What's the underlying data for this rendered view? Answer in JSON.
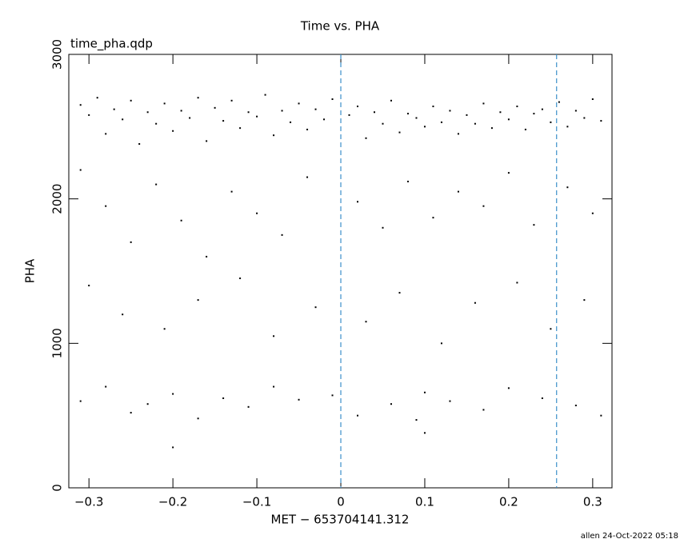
{
  "chart_data": {
    "type": "scatter",
    "title": "Time vs. PHA",
    "subtitle": "time_pha.qdp",
    "x_label": "MET − 653704141.312",
    "y_label": "PHA",
    "footer": "allen 24-Oct-2022 05:18",
    "color": "#000000",
    "vline_color": "#3b8fc9",
    "vlines": [
      0,
      0.257
    ],
    "xlim": [
      -0.324,
      0.323
    ],
    "ylim": [
      0,
      3000
    ],
    "xticks": [
      {
        "value": -0.3,
        "label": "−0.3"
      },
      {
        "value": -0.2,
        "label": "−0.2"
      },
      {
        "value": -0.1,
        "label": "−0.1"
      },
      0,
      0.1,
      0.2,
      0.3
    ],
    "yticks": [
      0,
      1000,
      2000,
      3000
    ],
    "x": [
      -0.31,
      -0.3,
      -0.29,
      -0.28,
      -0.27,
      -0.26,
      -0.25,
      -0.24,
      -0.23,
      -0.22,
      -0.21,
      -0.2,
      -0.19,
      -0.18,
      -0.17,
      -0.16,
      -0.15,
      -0.14,
      -0.13,
      -0.12,
      -0.11,
      -0.1,
      -0.09,
      -0.08,
      -0.07,
      -0.06,
      -0.05,
      -0.04,
      -0.03,
      -0.02,
      -0.01,
      0.01,
      0.02,
      0.03,
      0.04,
      0.05,
      0.06,
      0.07,
      0.08,
      0.09,
      0.1,
      0.11,
      0.12,
      0.13,
      0.14,
      0.15,
      0.16,
      0.17,
      0.18,
      0.19,
      0.2,
      0.21,
      0.22,
      0.23,
      0.24,
      0.25,
      0.26,
      0.27,
      0.28,
      0.29,
      0.3,
      0.31,
      -0.31,
      -0.28,
      -0.25,
      -0.22,
      -0.19,
      -0.16,
      -0.13,
      -0.1,
      -0.07,
      -0.04,
      0.02,
      0.05,
      0.08,
      0.11,
      0.14,
      0.17,
      0.2,
      0.23,
      0.27,
      0.3,
      -0.3,
      -0.26,
      -0.21,
      -0.17,
      -0.12,
      -0.08,
      -0.03,
      0.03,
      0.07,
      0.12,
      0.16,
      0.21,
      0.25,
      0.29,
      -0.31,
      -0.28,
      -0.25,
      -0.23,
      -0.2,
      -0.17,
      -0.14,
      -0.11,
      -0.08,
      -0.05,
      -0.01,
      0.02,
      0.06,
      0.09,
      0.1,
      0.13,
      0.17,
      0.2,
      0.24,
      0.28,
      0.31,
      -0.2,
      0.1
    ],
    "y": [
      2650,
      2580,
      2700,
      2450,
      2620,
      2550,
      2680,
      2380,
      2600,
      2520,
      2660,
      2470,
      2610,
      2560,
      2700,
      2400,
      2630,
      2540,
      2680,
      2490,
      2600,
      2570,
      2720,
      2440,
      2610,
      2530,
      2660,
      2480,
      2620,
      2550,
      2690,
      2580,
      2640,
      2420,
      2600,
      2520,
      2680,
      2460,
      2590,
      2560,
      2500,
      2640,
      2530,
      2610,
      2450,
      2580,
      2520,
      2660,
      2490,
      2600,
      2550,
      2640,
      2480,
      2590,
      2620,
      2530,
      2670,
      2500,
      2610,
      2560,
      2690,
      2540,
      2200,
      1950,
      1700,
      2100,
      1850,
      1600,
      2050,
      1900,
      1750,
      2150,
      1980,
      1800,
      2120,
      1870,
      2050,
      1950,
      2180,
      1820,
      2080,
      1900,
      1400,
      1200,
      1100,
      1300,
      1450,
      1050,
      1250,
      1150,
      1350,
      1000,
      1280,
      1420,
      1100,
      1300,
      600,
      700,
      520,
      580,
      650,
      480,
      620,
      560,
      700,
      610,
      640,
      500,
      580,
      470,
      660,
      600,
      540,
      690,
      620,
      570,
      500,
      280,
      380
    ]
  }
}
